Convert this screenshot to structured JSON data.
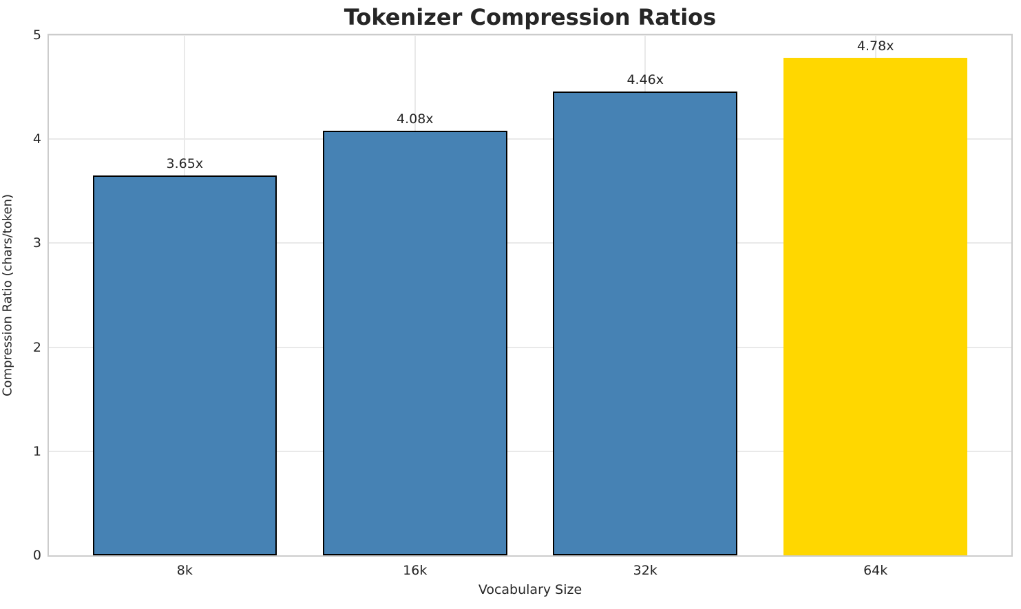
{
  "chart_data": {
    "type": "bar",
    "title": "Tokenizer Compression Ratios",
    "xlabel": "Vocabulary Size",
    "ylabel": "Compression Ratio (chars/token)",
    "categories": [
      "8k",
      "16k",
      "32k",
      "64k"
    ],
    "values": [
      3.65,
      4.08,
      4.46,
      4.78
    ],
    "bar_labels": [
      "3.65x",
      "4.08x",
      "4.46x",
      "4.78x"
    ],
    "bar_colors": [
      "#4682b4",
      "#4682b4",
      "#4682b4",
      "#ffd700"
    ],
    "bar_edge_colors": [
      "#000000",
      "#000000",
      "#000000",
      "none"
    ],
    "ylim": [
      0,
      5
    ],
    "yticks": [
      "0",
      "1",
      "2",
      "3",
      "4",
      "5"
    ],
    "xlim": [
      -0.59,
      3.59
    ],
    "bar_width_units": 0.8,
    "grid": "both",
    "grid_color": "#e9e9e9",
    "spine_color": "#cccccc",
    "background_color": "#ffffff",
    "text_color": "#262626",
    "primary_bar_color": "#4682b4",
    "highlight_bar_color": "#ffd700"
  }
}
